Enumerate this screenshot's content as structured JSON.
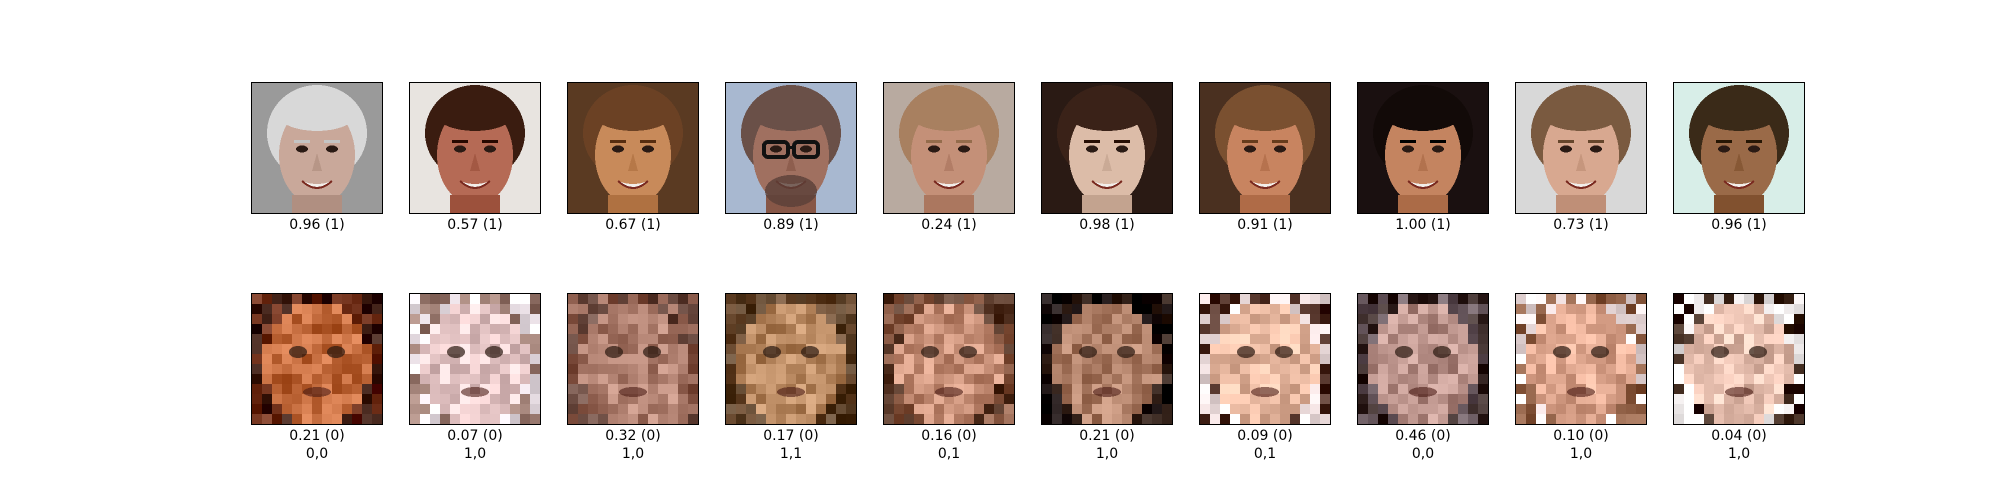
{
  "real_row": [
    {
      "caption": "0.96 (1)",
      "skin": "#c9a89a",
      "bg": "#9a9a9a",
      "hair": "#d8d8d8",
      "face": "old-man-smiling"
    },
    {
      "caption": "0.57 (1)",
      "skin": "#b56a55",
      "bg": "#e8e4e0",
      "hair": "#3a1c10",
      "face": "young-man-smiling"
    },
    {
      "caption": "0.67 (1)",
      "skin": "#c88a5a",
      "bg": "#5a3a22",
      "hair": "#6b4124",
      "face": "woman-smiling"
    },
    {
      "caption": "0.89 (1)",
      "skin": "#a07060",
      "bg": "#a8b8d0",
      "hair": "#6a5048",
      "face": "man-with-glasses"
    },
    {
      "caption": "0.24 (1)",
      "skin": "#c49078",
      "bg": "#b8aaa0",
      "hair": "#a88060",
      "face": "middle-aged-man"
    },
    {
      "caption": "0.98 (1)",
      "skin": "#dcbca8",
      "bg": "#2a1a14",
      "hair": "#3a2218",
      "face": "woman-dark-hair"
    },
    {
      "caption": "0.91 (1)",
      "skin": "#c88460",
      "bg": "#4a3020",
      "hair": "#7a5030",
      "face": "man-speaking"
    },
    {
      "caption": "1.00 (1)",
      "skin": "#c48460",
      "bg": "#1a1010",
      "hair": "#120a08",
      "face": "woman-smiling-dark-hair"
    },
    {
      "caption": "0.73 (1)",
      "skin": "#d8a890",
      "bg": "#d8d8d8",
      "hair": "#7a5a40",
      "face": "woman-light-background"
    },
    {
      "caption": "0.96 (1)",
      "skin": "#9a6a48",
      "bg": "#d8eee8",
      "hair": "#3a2a18",
      "face": "young-man-curly-hair"
    }
  ],
  "fake_row": [
    {
      "caption": "0.21 (0)",
      "label": "0,0",
      "skin": "#c0683a",
      "bg": "#6a2a14",
      "hair": "#3a1a10",
      "face": "generated-face"
    },
    {
      "caption": "0.07 (0)",
      "label": "1,0",
      "skin": "#e8c8c8",
      "bg": "#f4eaf0",
      "hair": "#9a7a70",
      "face": "generated-face"
    },
    {
      "caption": "0.32 (0)",
      "label": "1,0",
      "skin": "#b08070",
      "bg": "#906050",
      "hair": "#6a4a40",
      "face": "generated-face"
    },
    {
      "caption": "0.17 (0)",
      "label": "1,1",
      "skin": "#b88860",
      "bg": "#5a4028",
      "hair": "#6a4a30",
      "face": "generated-face"
    },
    {
      "caption": "0.16 (0)",
      "label": "0,1",
      "skin": "#c89078",
      "bg": "#8a5a44",
      "hair": "#5a3a2a",
      "face": "generated-face"
    },
    {
      "caption": "0.21 (0)",
      "label": "1,0",
      "skin": "#b08068",
      "bg": "#2a1810",
      "hair": "#1a1010",
      "face": "generated-face"
    },
    {
      "caption": "0.09 (0)",
      "label": "0,1",
      "skin": "#e8b8a0",
      "bg": "#f0e0e0",
      "hair": "#4a2a20",
      "face": "generated-face"
    },
    {
      "caption": "0.46 (0)",
      "label": "0,0",
      "skin": "#b89088",
      "bg": "#6a5a60",
      "hair": "#3a2a28",
      "face": "generated-face"
    },
    {
      "caption": "0.10 (0)",
      "label": "1,0",
      "skin": "#e0a890",
      "bg": "#f0e0e0",
      "hair": "#8a5a40",
      "face": "generated-face"
    },
    {
      "caption": "0.04 (0)",
      "label": "1,0",
      "skin": "#e8c0b0",
      "bg": "#f8f4f4",
      "hair": "#3a2418",
      "face": "generated-face"
    }
  ]
}
